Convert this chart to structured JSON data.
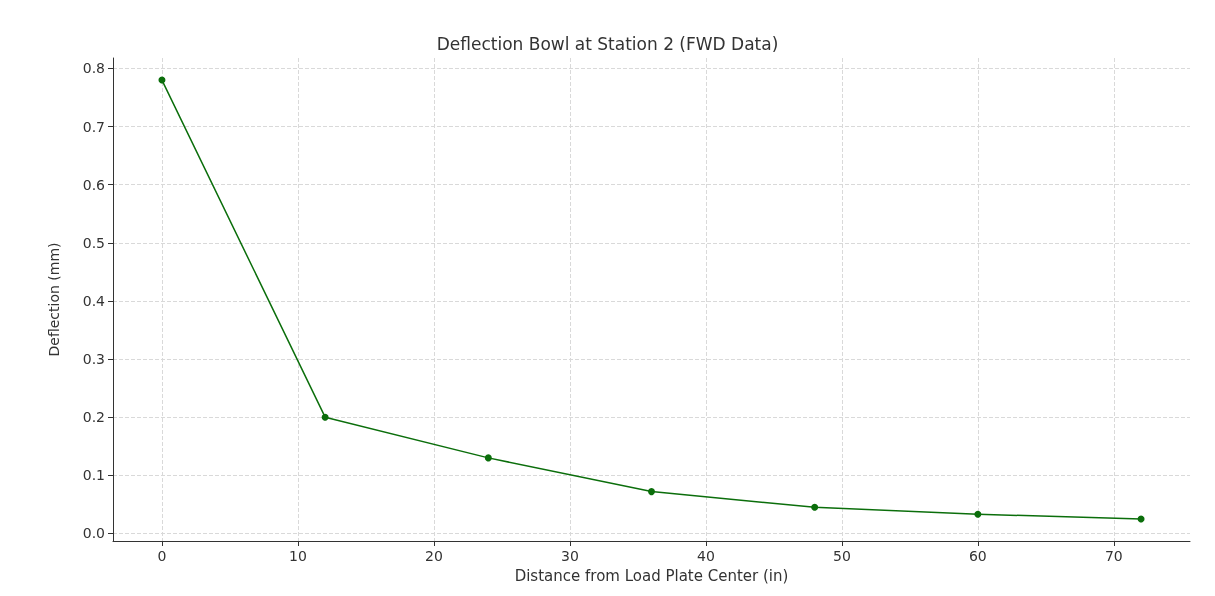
{
  "chart_data": {
    "type": "line",
    "title": "Deflection Bowl at Station 2 (FWD Data)",
    "xlabel": "Distance from Load Plate Center (in)",
    "ylabel": "Deflection (mm)",
    "x": [
      0,
      12,
      24,
      36,
      48,
      60,
      72
    ],
    "series": [
      {
        "color": "#0b6e0b",
        "values": [
          0.78,
          0.2,
          0.13,
          0.072,
          0.045,
          0.033,
          0.025
        ]
      }
    ],
    "xlim": [
      -3.6,
      75.6
    ],
    "xticks": [
      0,
      10,
      20,
      30,
      40,
      50,
      60,
      70
    ],
    "ylim": [
      -0.013,
      0.818
    ],
    "yticks": [
      {
        "value": 0,
        "label": "0.0"
      },
      0.1,
      0.2,
      0.3,
      0.4,
      0.5,
      0.6,
      0.7,
      0.8
    ],
    "grid": true,
    "marker": "circle",
    "line_style": "solid"
  }
}
